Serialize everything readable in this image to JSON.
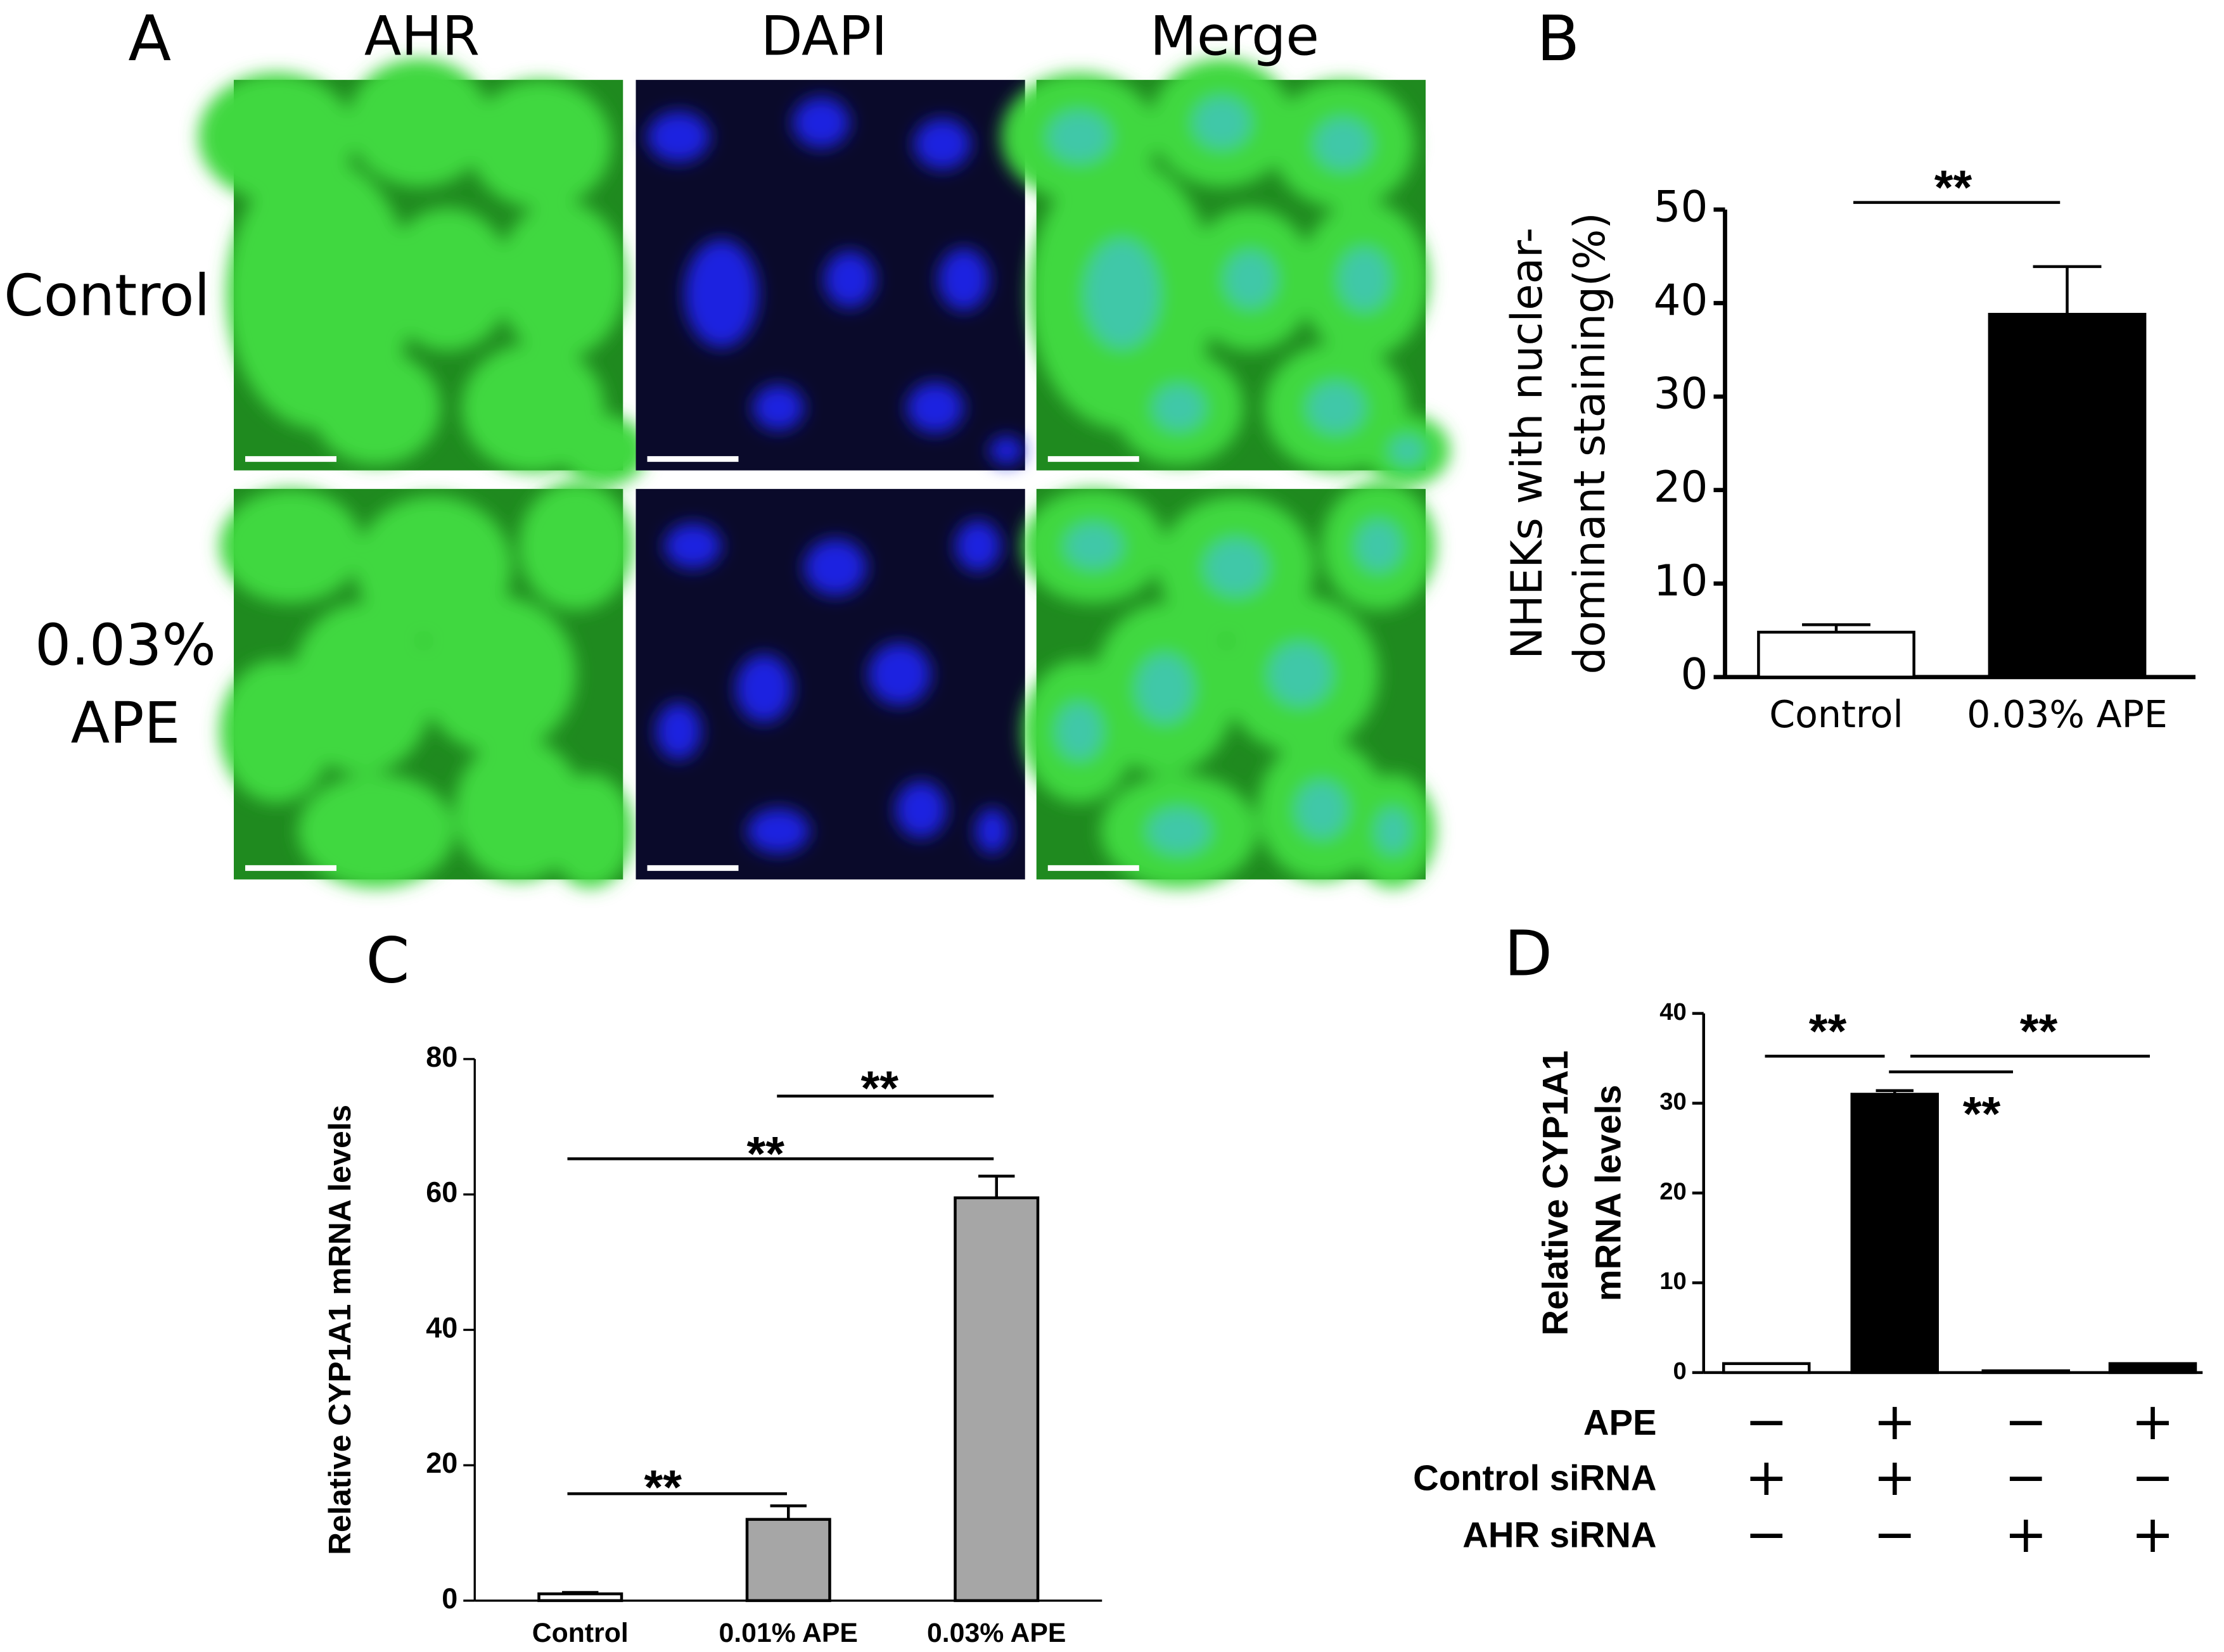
{
  "panel_a": {
    "label": "A",
    "columns": [
      "AHR",
      "DAPI",
      "Merge"
    ],
    "rows": [
      [
        "Control"
      ],
      [
        "0.03%",
        "APE"
      ]
    ]
  },
  "chart_data": [
    {
      "type": "bar",
      "label": "B",
      "ylabel": [
        "NHEKs with nuclear-",
        "dominant staining(%)"
      ],
      "categories": [
        "Control",
        "0.03% APE"
      ],
      "values": [
        4.8,
        38.8
      ],
      "errors": [
        0.8,
        5.1
      ],
      "colors": [
        "#ffffff",
        "#000000"
      ],
      "ylim": [
        0,
        50
      ],
      "yticks": [
        0,
        10,
        20,
        30,
        40,
        50
      ],
      "annotations": [
        {
          "label": "**",
          "from": 0,
          "to": 1
        }
      ]
    },
    {
      "type": "bar",
      "label": "C",
      "ylabel": [
        "Relative CYP1A1 mRNA levels"
      ],
      "categories": [
        "Control",
        "0.01% APE",
        "0.03% APE"
      ],
      "values": [
        1,
        12,
        59.5
      ],
      "errors": [
        0.2,
        2,
        3.2
      ],
      "colors": [
        "#ffffff",
        "#a6a6a6",
        "#a6a6a6"
      ],
      "ylim": [
        0,
        80
      ],
      "yticks": [
        0,
        20,
        40,
        60,
        80
      ],
      "annotations": [
        {
          "label": "**",
          "from": 0,
          "to": 1
        },
        {
          "label": "**",
          "from": 0,
          "to": 2
        },
        {
          "label": "**",
          "from": 1,
          "to": 2
        }
      ]
    },
    {
      "type": "bar",
      "label": "D",
      "ylabel": [
        "Relative CYP1A1",
        "mRNA levels"
      ],
      "categories": [
        null,
        null,
        null,
        null
      ],
      "values": [
        1,
        31,
        0.2,
        1
      ],
      "errors": [
        0,
        0.4,
        0,
        0
      ],
      "colors": [
        "#ffffff",
        "#000000",
        "#000000",
        "#000000"
      ],
      "ylim": [
        0,
        40
      ],
      "yticks": [
        0,
        10,
        20,
        30,
        40
      ],
      "conditions": [
        {
          "name": "APE",
          "marks": [
            "−",
            "+",
            "−",
            "+"
          ]
        },
        {
          "name": "Control siRNA",
          "marks": [
            "+",
            "+",
            "−",
            "−"
          ]
        },
        {
          "name": "AHR siRNA",
          "marks": [
            "−",
            "−",
            "+",
            "+"
          ]
        }
      ],
      "annotations": [
        {
          "label": "**",
          "from": 0,
          "to": 1
        },
        {
          "label": "**",
          "from": 1,
          "to": 3
        },
        {
          "label": "**",
          "from": 1,
          "to": 2
        }
      ]
    }
  ]
}
